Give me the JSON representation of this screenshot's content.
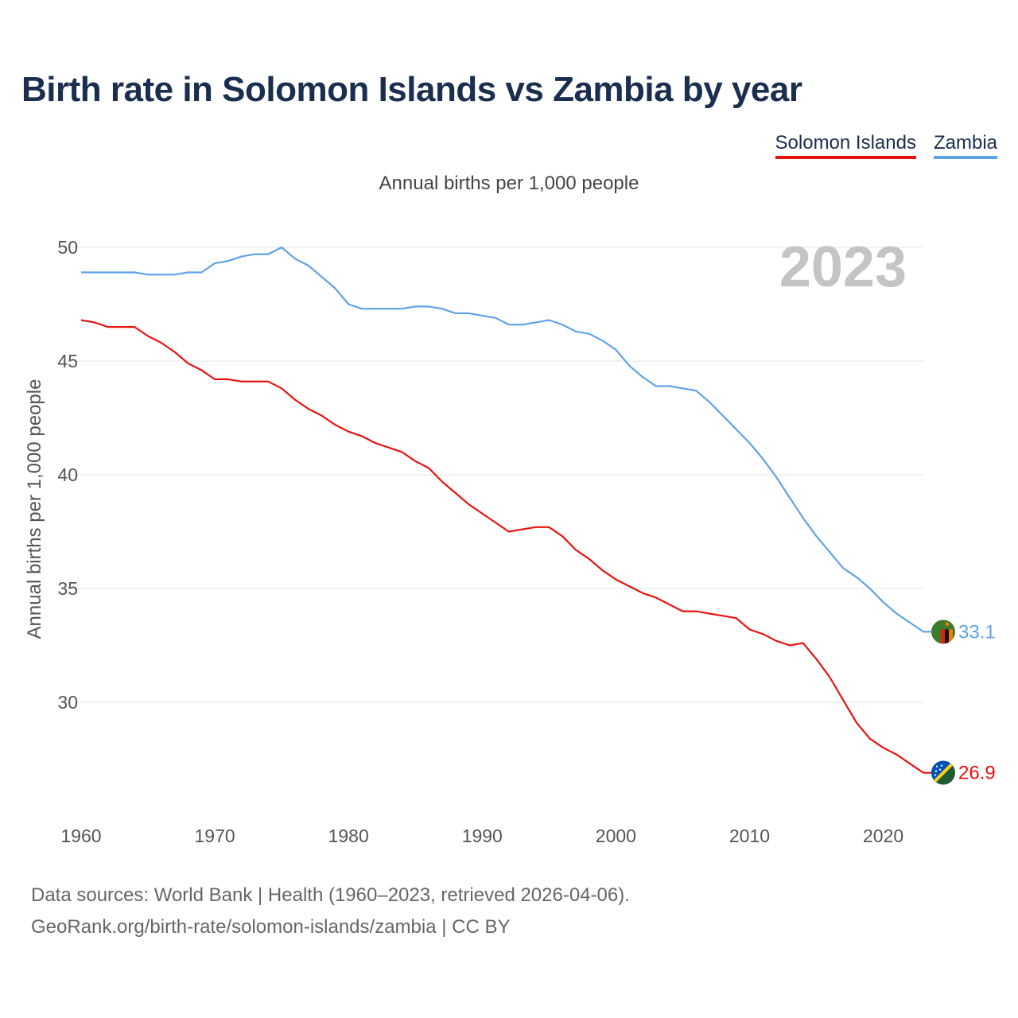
{
  "title": "Birth rate in Solomon Islands vs Zambia by year",
  "subtitle": "Annual births per 1,000 people",
  "legend": {
    "solomon_islands": "Solomon Islands",
    "zambia": "Zambia"
  },
  "current_year_label": "2023",
  "source": {
    "line1": "Data sources: World Bank | Health (1960–2023, retrieved 2026-04-06).",
    "line2": "GeoRank.org/birth-rate/solomon-islands/zambia | CC BY"
  },
  "chart_data": {
    "type": "line",
    "title": "Birth rate in Solomon Islands vs Zambia by year",
    "xlabel": "",
    "ylabel": "Annual births per 1,000 people",
    "xlim": [
      1960,
      2023
    ],
    "ylim": [
      26,
      50.5
    ],
    "grid": true,
    "x_ticks": [
      1960,
      1970,
      1980,
      1990,
      2000,
      2010,
      2020
    ],
    "y_ticks": [
      30,
      35,
      40,
      45,
      50
    ],
    "x": [
      1960,
      1961,
      1962,
      1963,
      1964,
      1965,
      1966,
      1967,
      1968,
      1969,
      1970,
      1971,
      1972,
      1973,
      1974,
      1975,
      1976,
      1977,
      1978,
      1979,
      1980,
      1981,
      1982,
      1983,
      1984,
      1985,
      1986,
      1987,
      1988,
      1989,
      1990,
      1991,
      1992,
      1993,
      1994,
      1995,
      1996,
      1997,
      1998,
      1999,
      2000,
      2001,
      2002,
      2003,
      2004,
      2005,
      2006,
      2007,
      2008,
      2009,
      2010,
      2011,
      2012,
      2013,
      2014,
      2015,
      2016,
      2017,
      2018,
      2019,
      2020,
      2021,
      2022,
      2023
    ],
    "series": [
      {
        "name": "Solomon Islands",
        "color": "#e8130f",
        "end_label": "26.9",
        "flag": "solomon-islands-flag-icon",
        "values": [
          46.8,
          46.7,
          46.5,
          46.5,
          46.5,
          46.1,
          45.8,
          45.4,
          44.9,
          44.6,
          44.2,
          44.2,
          44.1,
          44.1,
          44.1,
          43.8,
          43.3,
          42.9,
          42.6,
          42.2,
          41.9,
          41.7,
          41.4,
          41.2,
          41.0,
          40.6,
          40.3,
          39.7,
          39.2,
          38.7,
          38.3,
          37.9,
          37.5,
          37.6,
          37.7,
          37.7,
          37.3,
          36.7,
          36.3,
          35.8,
          35.4,
          35.1,
          34.8,
          34.6,
          34.3,
          34.0,
          34.0,
          33.9,
          33.8,
          33.7,
          33.2,
          33.0,
          32.7,
          32.5,
          32.6,
          31.9,
          31.1,
          30.1,
          29.1,
          28.4,
          28.0,
          27.7,
          27.3,
          26.9
        ]
      },
      {
        "name": "Zambia",
        "color": "#5ea3e6",
        "end_label": "33.1",
        "flag": "zambia-flag-icon",
        "values": [
          48.9,
          48.9,
          48.9,
          48.9,
          48.9,
          48.8,
          48.8,
          48.8,
          48.9,
          48.9,
          49.3,
          49.4,
          49.6,
          49.7,
          49.7,
          50.0,
          49.5,
          49.2,
          48.7,
          48.2,
          47.5,
          47.3,
          47.3,
          47.3,
          47.3,
          47.4,
          47.4,
          47.3,
          47.1,
          47.1,
          47.0,
          46.9,
          46.6,
          46.6,
          46.7,
          46.8,
          46.6,
          46.3,
          46.2,
          45.9,
          45.5,
          44.8,
          44.3,
          43.9,
          43.9,
          43.8,
          43.7,
          43.2,
          42.6,
          42.0,
          41.4,
          40.7,
          39.9,
          39.0,
          38.1,
          37.3,
          36.6,
          35.9,
          35.5,
          35.0,
          34.4,
          33.9,
          33.5,
          33.1
        ]
      }
    ]
  }
}
